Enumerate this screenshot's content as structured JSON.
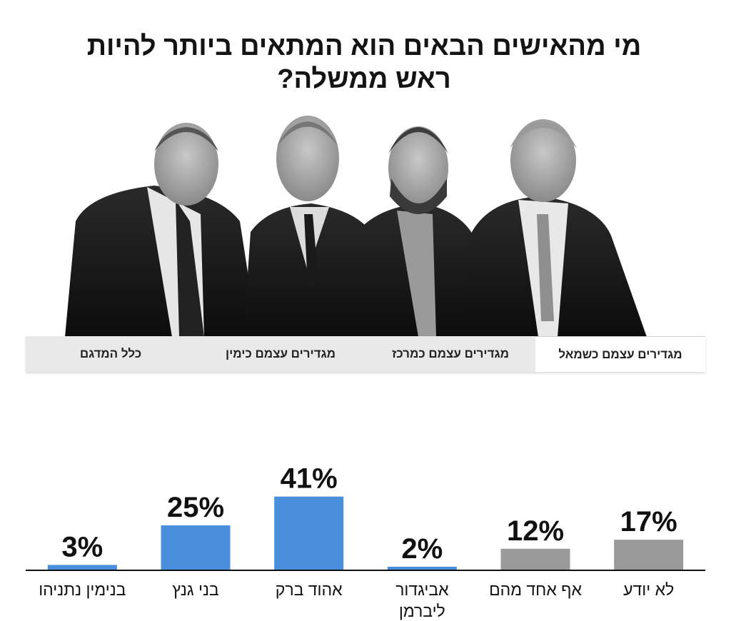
{
  "title": {
    "line1": "מי מהאישים הבאים הוא המתאים ביותר להיות",
    "line2": "ראש ממשלה?"
  },
  "tabs": [
    {
      "label": "מגדירים עצמם כשמאל",
      "active": true
    },
    {
      "label": "מגדירים עצמם כמרכז",
      "active": false
    },
    {
      "label": "מגדירים עצמם כימין",
      "active": false
    },
    {
      "label": "כלל המדגם",
      "active": false
    }
  ],
  "colors": {
    "candidate": "#4a8fdd",
    "other": "#9a9a9a",
    "axis": "#111111"
  },
  "chart_data": {
    "type": "bar",
    "unit": "%",
    "title": "",
    "xlabel": "",
    "ylabel": "",
    "ylim": [
      0,
      45
    ],
    "grid": false,
    "categories": [
      {
        "label": [
          "בנימין נתניהו"
        ],
        "value": 3,
        "group": "candidate"
      },
      {
        "label": [
          "בני גנץ"
        ],
        "value": 25,
        "group": "candidate"
      },
      {
        "label": [
          "אהוד ברק"
        ],
        "value": 41,
        "group": "candidate"
      },
      {
        "label": [
          "אביגדור",
          "ליברמן"
        ],
        "value": 2,
        "group": "candidate"
      },
      {
        "label": [
          "אף אחד מהם"
        ],
        "value": 12,
        "group": "other"
      },
      {
        "label": [
          "לא יודע"
        ],
        "value": 17,
        "group": "other"
      }
    ]
  }
}
